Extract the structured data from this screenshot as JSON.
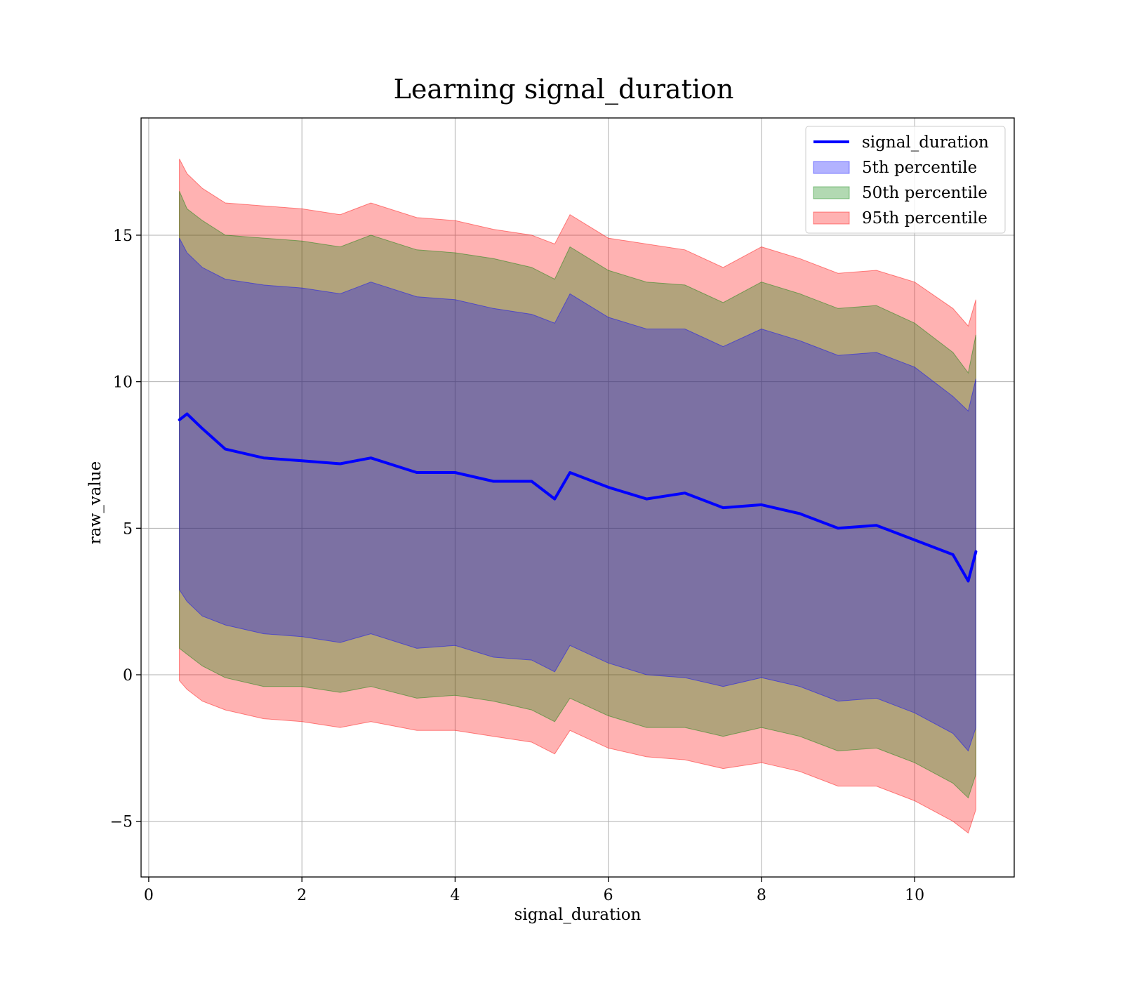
{
  "chart_data": {
    "type": "area",
    "title": "Learning signal_duration",
    "xlabel": "signal_duration",
    "ylabel": "raw_value",
    "xlim": [
      -0.1,
      11.3
    ],
    "ylim": [
      -6.9,
      19.0
    ],
    "grid": true,
    "legend_position": "top-right",
    "x_ticks": [
      {
        "value": 0,
        "label": "0"
      },
      {
        "value": 2,
        "label": "2"
      },
      {
        "value": 4,
        "label": "4"
      },
      {
        "value": 6,
        "label": "6"
      },
      {
        "value": 8,
        "label": "8"
      },
      {
        "value": 10,
        "label": "10"
      }
    ],
    "y_ticks": [
      {
        "value": -5,
        "label": "−5"
      },
      {
        "value": 0,
        "label": "0"
      },
      {
        "value": 5,
        "label": "5"
      },
      {
        "value": 10,
        "label": "10"
      },
      {
        "value": 15,
        "label": "15"
      }
    ],
    "x": [
      0.4,
      0.5,
      0.7,
      1.0,
      1.5,
      2.0,
      2.5,
      2.9,
      3.5,
      4.0,
      4.5,
      5.0,
      5.3,
      5.5,
      6.0,
      6.5,
      7.0,
      7.5,
      8.0,
      8.5,
      9.0,
      9.5,
      10.0,
      10.5,
      10.7,
      10.8
    ],
    "line": {
      "name": "signal_duration",
      "color": "#0000ff",
      "values": [
        8.7,
        8.9,
        8.4,
        7.7,
        7.4,
        7.3,
        7.2,
        7.4,
        6.9,
        6.9,
        6.6,
        6.6,
        6.0,
        6.9,
        6.4,
        6.0,
        6.2,
        5.7,
        5.8,
        5.5,
        5.0,
        5.1,
        4.6,
        4.1,
        3.2,
        4.2
      ]
    },
    "bands": [
      {
        "name": "95th percentile",
        "color": "#ff0000",
        "opacity": 0.3,
        "upper": [
          17.6,
          17.1,
          16.6,
          16.1,
          16.0,
          15.9,
          15.7,
          16.1,
          15.6,
          15.5,
          15.2,
          15.0,
          14.7,
          15.7,
          14.9,
          14.7,
          14.5,
          13.9,
          14.6,
          14.2,
          13.7,
          13.8,
          13.4,
          12.5,
          11.9,
          12.8
        ],
        "lower": [
          -0.2,
          -0.5,
          -0.9,
          -1.2,
          -1.5,
          -1.6,
          -1.8,
          -1.6,
          -1.9,
          -1.9,
          -2.1,
          -2.3,
          -2.7,
          -1.9,
          -2.5,
          -2.8,
          -2.9,
          -3.2,
          -3.0,
          -3.3,
          -3.8,
          -3.8,
          -4.3,
          -5.0,
          -5.4,
          -4.6
        ]
      },
      {
        "name": "50th percentile",
        "color": "#008000",
        "opacity": 0.3,
        "upper": [
          16.5,
          15.9,
          15.5,
          15.0,
          14.9,
          14.8,
          14.6,
          15.0,
          14.5,
          14.4,
          14.2,
          13.9,
          13.5,
          14.6,
          13.8,
          13.4,
          13.3,
          12.7,
          13.4,
          13.0,
          12.5,
          12.6,
          12.0,
          11.0,
          10.3,
          11.6
        ],
        "lower": [
          0.9,
          0.7,
          0.3,
          -0.1,
          -0.4,
          -0.4,
          -0.6,
          -0.4,
          -0.8,
          -0.7,
          -0.9,
          -1.2,
          -1.6,
          -0.8,
          -1.4,
          -1.8,
          -1.8,
          -2.1,
          -1.8,
          -2.1,
          -2.6,
          -2.5,
          -3.0,
          -3.7,
          -4.2,
          -3.4
        ]
      },
      {
        "name": "5th percentile",
        "color": "#0000ff",
        "opacity": 0.3,
        "upper": [
          14.9,
          14.4,
          13.9,
          13.5,
          13.3,
          13.2,
          13.0,
          13.4,
          12.9,
          12.8,
          12.5,
          12.3,
          12.0,
          13.0,
          12.2,
          11.8,
          11.8,
          11.2,
          11.8,
          11.4,
          10.9,
          11.0,
          10.5,
          9.5,
          9.0,
          10.1
        ],
        "lower": [
          2.9,
          2.5,
          2.0,
          1.7,
          1.4,
          1.3,
          1.1,
          1.4,
          0.9,
          1.0,
          0.6,
          0.5,
          0.1,
          1.0,
          0.4,
          0.0,
          -0.1,
          -0.4,
          -0.1,
          -0.4,
          -0.9,
          -0.8,
          -1.3,
          -2.0,
          -2.6,
          -1.8
        ]
      }
    ],
    "legend": [
      {
        "label": "signal_duration",
        "kind": "line",
        "color": "#0000ff"
      },
      {
        "label": "5th percentile",
        "kind": "patch",
        "color": "#0000ff"
      },
      {
        "label": "50th percentile",
        "kind": "patch",
        "color": "#008000"
      },
      {
        "label": "95th percentile",
        "kind": "patch",
        "color": "#ff0000"
      }
    ]
  }
}
